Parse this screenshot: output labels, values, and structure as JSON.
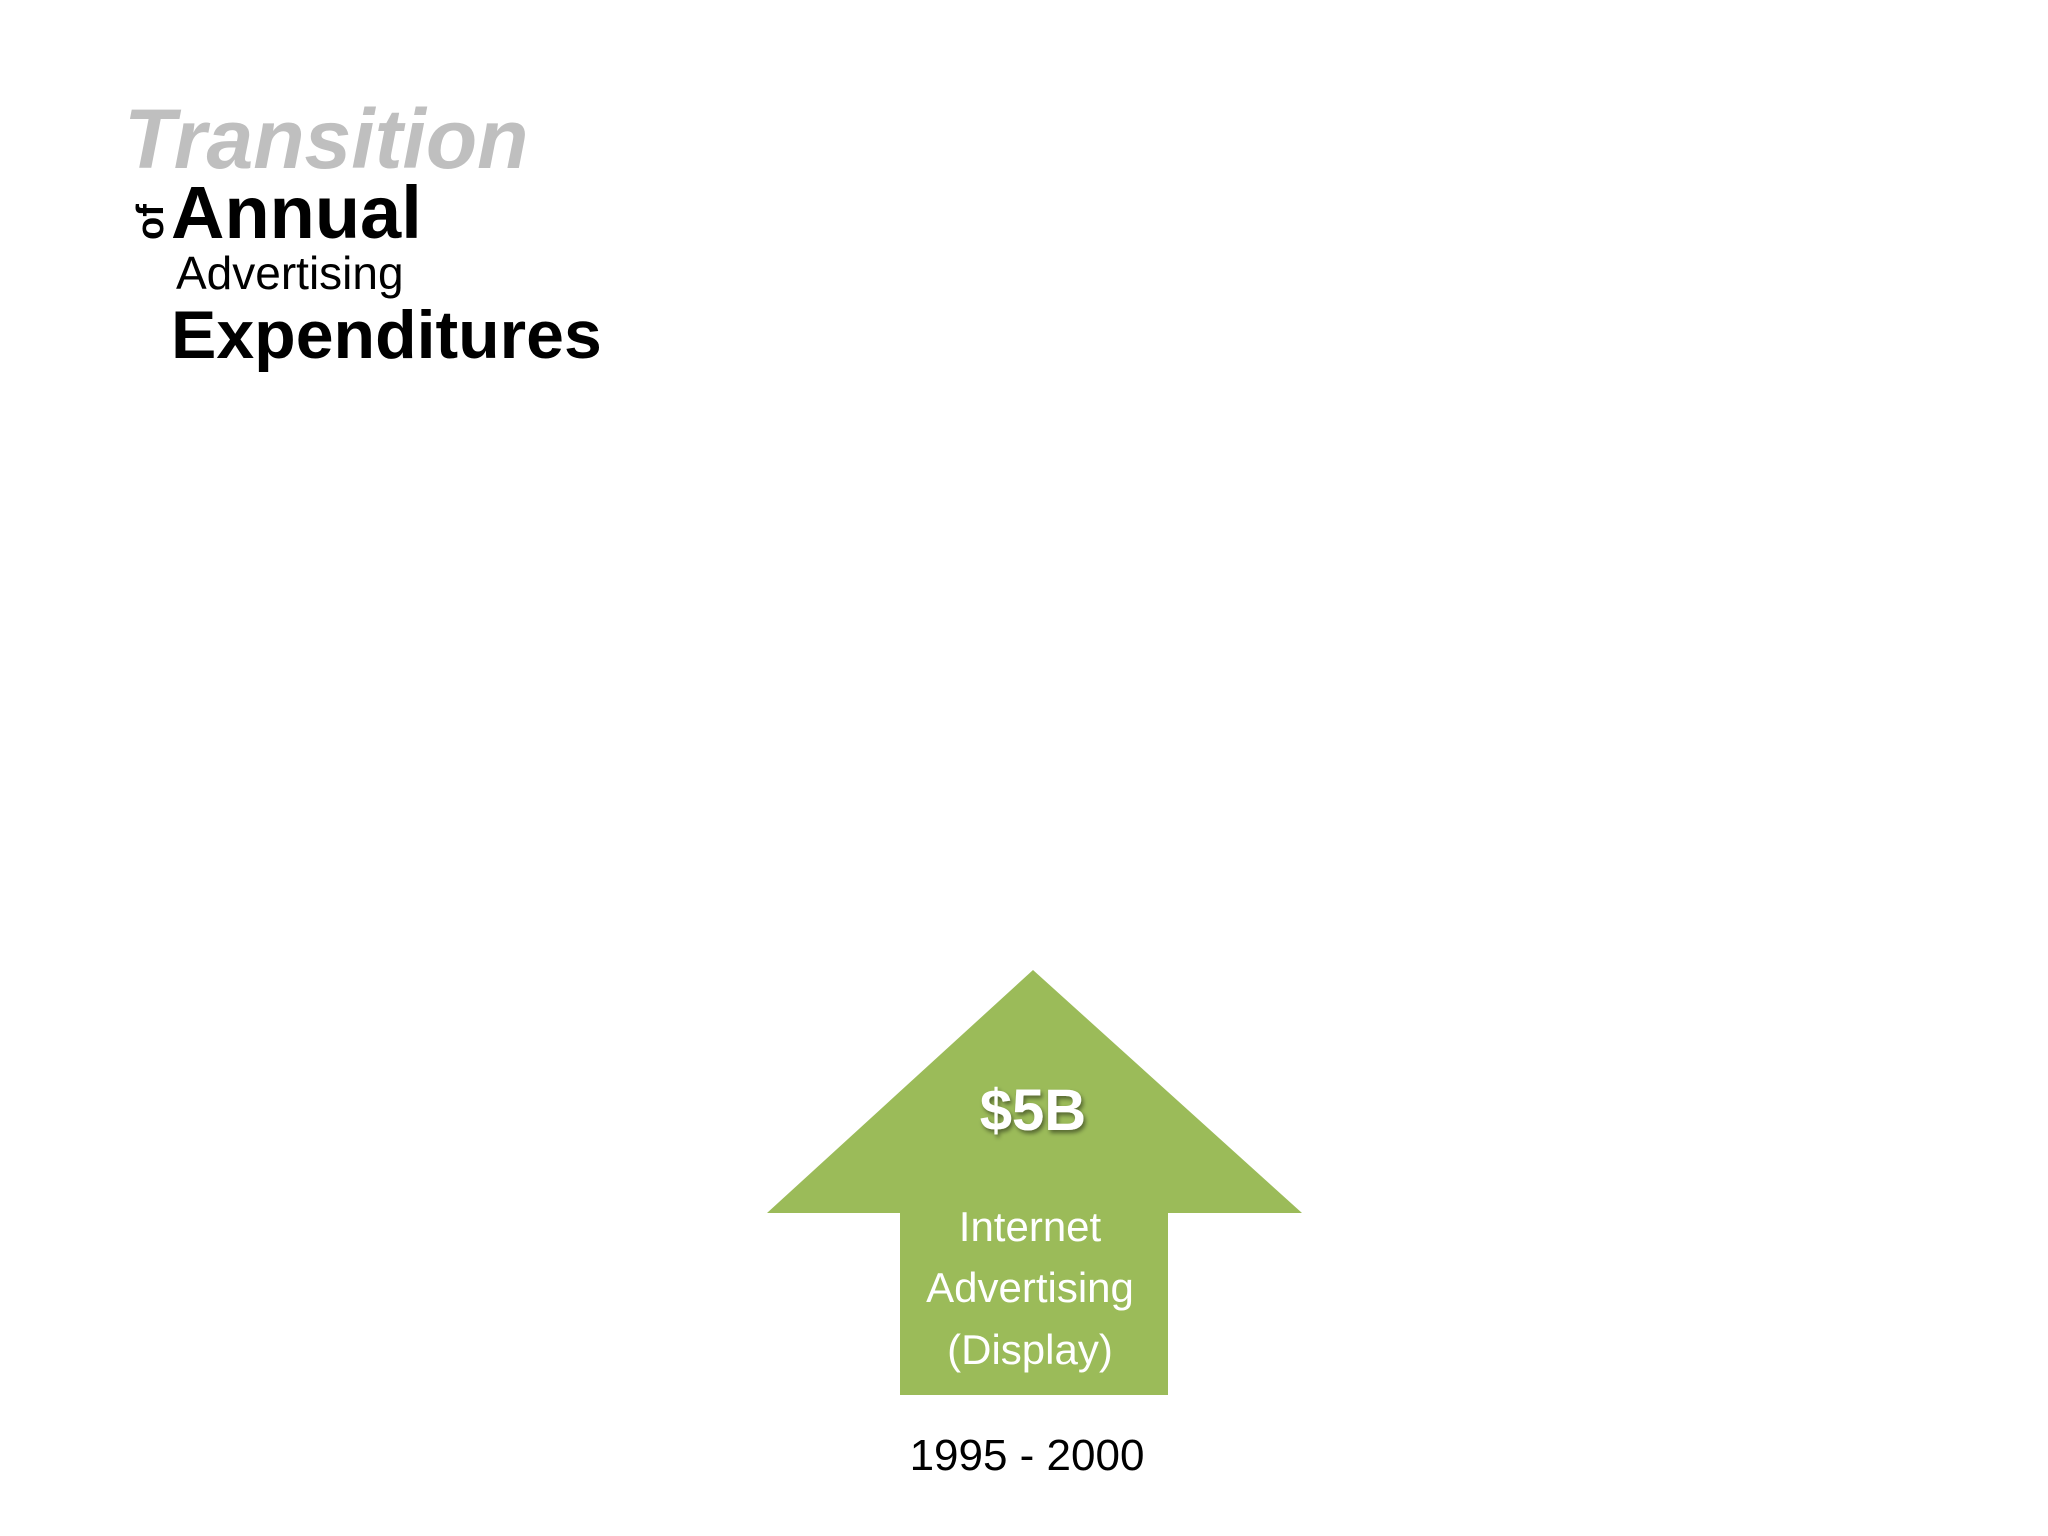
{
  "title": {
    "line1": "Transition",
    "connector": "of",
    "line2": "Annual",
    "line3": "Advertising",
    "line4": "Expenditures"
  },
  "arrow": {
    "value": "$5B",
    "label": [
      "Internet",
      "Advertising",
      "(Display)"
    ],
    "period": "1995 - 2000"
  }
}
